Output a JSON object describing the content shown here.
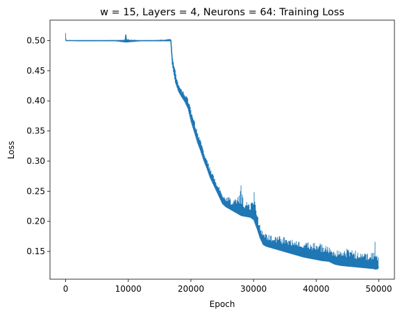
{
  "chart_data": {
    "type": "line",
    "title": "w = 15, Layers = 4, Neurons = 64: Training Loss",
    "xlabel": "Epoch",
    "ylabel": "Loss",
    "xlim": [
      -2500,
      52500
    ],
    "ylim": [
      0.104,
      0.534
    ],
    "xticks": [
      0,
      10000,
      20000,
      30000,
      40000,
      50000
    ],
    "yticks": [
      0.15,
      0.2,
      0.25,
      0.3,
      0.35,
      0.4,
      0.45,
      0.5
    ],
    "ytick_labels": [
      "0.15",
      "0.20",
      "0.25",
      "0.30",
      "0.35",
      "0.40",
      "0.45",
      "0.50"
    ],
    "grid": false,
    "line_color": "#1f77b4",
    "series": [
      {
        "x": [
          0,
          100,
          2000,
          4000,
          6000,
          8000,
          9500,
          9600,
          9700,
          12000,
          14000,
          16000,
          16500,
          16800,
          17000,
          17500,
          18000,
          18500,
          19000,
          19500,
          20000,
          20500,
          21000,
          21500,
          22000,
          22500,
          23000,
          23500,
          24000,
          24500,
          25000,
          25500,
          26000,
          26500,
          27000,
          27500,
          28000,
          28500,
          29000,
          29500,
          30000,
          30500,
          31000,
          31500,
          32000,
          33000,
          34000,
          35000,
          36000,
          37000,
          38000,
          39000,
          40000,
          41000,
          42000,
          43000,
          44000,
          45000,
          46000,
          47000,
          48000,
          49000,
          49500,
          50000
        ],
        "y": [
          0.5,
          0.5,
          0.5,
          0.5,
          0.5,
          0.5,
          0.5,
          0.509,
          0.5,
          0.5,
          0.5,
          0.5,
          0.501,
          0.5,
          0.47,
          0.44,
          0.422,
          0.413,
          0.405,
          0.396,
          0.375,
          0.358,
          0.34,
          0.326,
          0.31,
          0.296,
          0.281,
          0.27,
          0.258,
          0.248,
          0.236,
          0.229,
          0.226,
          0.223,
          0.22,
          0.217,
          0.213,
          0.212,
          0.211,
          0.209,
          0.206,
          0.195,
          0.18,
          0.167,
          0.163,
          0.16,
          0.157,
          0.155,
          0.152,
          0.15,
          0.147,
          0.145,
          0.143,
          0.141,
          0.139,
          0.134,
          0.132,
          0.131,
          0.13,
          0.129,
          0.128,
          0.127,
          0.126,
          0.124
        ],
        "band_low": [
          0.5,
          0.5,
          0.499,
          0.499,
          0.499,
          0.499,
          0.497,
          0.497,
          0.497,
          0.499,
          0.499,
          0.499,
          0.499,
          0.499,
          0.46,
          0.43,
          0.415,
          0.406,
          0.398,
          0.387,
          0.365,
          0.348,
          0.331,
          0.317,
          0.301,
          0.288,
          0.273,
          0.262,
          0.251,
          0.24,
          0.229,
          0.224,
          0.221,
          0.218,
          0.215,
          0.212,
          0.209,
          0.208,
          0.207,
          0.206,
          0.202,
          0.188,
          0.172,
          0.161,
          0.158,
          0.155,
          0.152,
          0.149,
          0.146,
          0.143,
          0.14,
          0.138,
          0.136,
          0.134,
          0.133,
          0.128,
          0.126,
          0.125,
          0.124,
          0.123,
          0.122,
          0.121,
          0.12,
          0.121
        ],
        "band_high": [
          0.513,
          0.501,
          0.501,
          0.501,
          0.501,
          0.501,
          0.502,
          0.511,
          0.503,
          0.501,
          0.501,
          0.502,
          0.504,
          0.503,
          0.48,
          0.452,
          0.428,
          0.42,
          0.412,
          0.405,
          0.388,
          0.37,
          0.35,
          0.336,
          0.319,
          0.305,
          0.29,
          0.279,
          0.266,
          0.257,
          0.244,
          0.24,
          0.248,
          0.233,
          0.238,
          0.24,
          0.262,
          0.229,
          0.243,
          0.226,
          0.262,
          0.217,
          0.196,
          0.185,
          0.18,
          0.177,
          0.176,
          0.174,
          0.173,
          0.171,
          0.168,
          0.166,
          0.168,
          0.162,
          0.158,
          0.153,
          0.15,
          0.158,
          0.15,
          0.155,
          0.148,
          0.15,
          0.171,
          0.14
        ]
      }
    ]
  }
}
